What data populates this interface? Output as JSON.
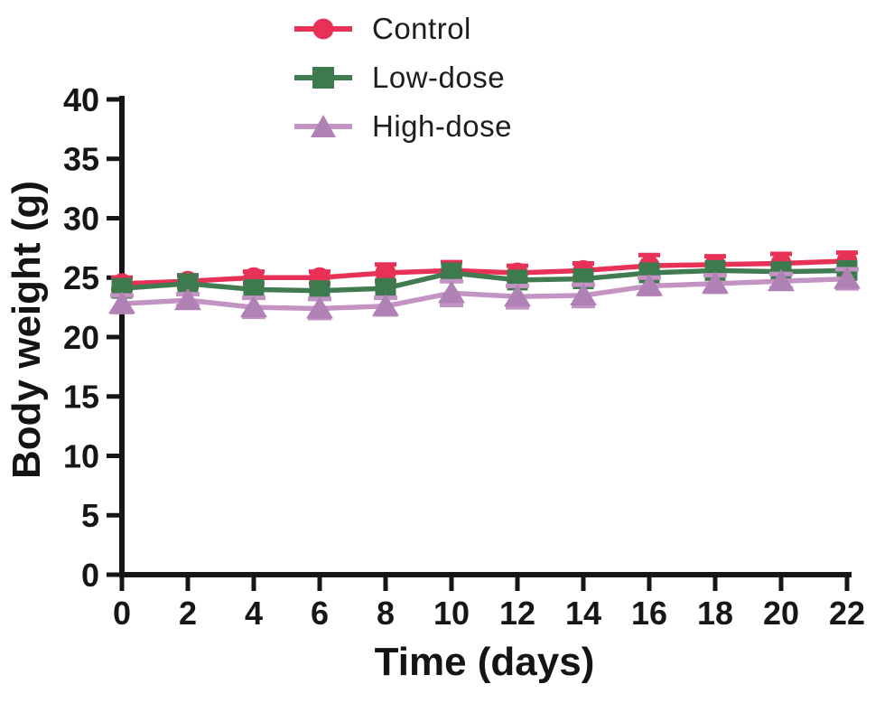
{
  "figure": {
    "background": "#ffffff",
    "axis_color": "#161616",
    "text_color": "#1d1d1d"
  },
  "chart_data": {
    "type": "line",
    "title": "",
    "xlabel": "Time (days)",
    "ylabel": "Body weight (g)",
    "x": [
      0,
      2,
      4,
      6,
      8,
      10,
      12,
      14,
      16,
      18,
      20,
      22
    ],
    "xticks": [
      0,
      2,
      4,
      6,
      8,
      10,
      12,
      14,
      16,
      18,
      20,
      22
    ],
    "yticks": [
      0,
      5,
      10,
      15,
      20,
      25,
      30,
      35,
      40
    ],
    "xlim": [
      0,
      22
    ],
    "ylim": [
      0,
      40
    ],
    "grid": false,
    "error_bars": true,
    "legend_position": "top-center",
    "series": [
      {
        "name": "Control",
        "marker": "circle",
        "color": "#e73156",
        "marker_color": "#e73156",
        "values": [
          24.5,
          24.7,
          25.0,
          25.0,
          25.4,
          25.6,
          25.4,
          25.6,
          26.0,
          26.1,
          26.2,
          26.4
        ],
        "errors": [
          0.5,
          0.5,
          0.5,
          0.5,
          0.7,
          0.7,
          0.6,
          0.6,
          0.9,
          0.7,
          0.8,
          0.7
        ]
      },
      {
        "name": "Low-dose",
        "marker": "square",
        "color": "#417b51",
        "marker_color": "#3d7a4e",
        "values": [
          24.1,
          24.5,
          24.0,
          23.9,
          24.1,
          25.4,
          24.8,
          24.9,
          25.4,
          25.6,
          25.5,
          25.6
        ],
        "errors": [
          0.6,
          0.4,
          0.5,
          0.5,
          0.6,
          0.5,
          0.5,
          0.5,
          0.5,
          0.5,
          0.5,
          0.5
        ]
      },
      {
        "name": "High-dose",
        "marker": "triangle",
        "color": "#c393c3",
        "marker_color": "#b081b4",
        "values": [
          22.8,
          23.1,
          22.5,
          22.4,
          22.6,
          23.7,
          23.4,
          23.5,
          24.3,
          24.5,
          24.7,
          24.9
        ],
        "errors": [
          0.7,
          0.5,
          0.8,
          0.8,
          0.7,
          1.0,
          0.9,
          0.9,
          0.7,
          0.7,
          0.6,
          0.8
        ]
      }
    ]
  }
}
